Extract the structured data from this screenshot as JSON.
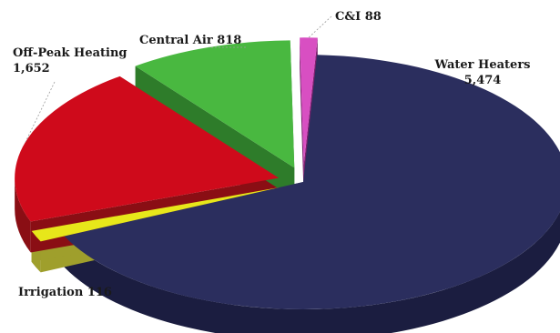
{
  "chart_data": {
    "type": "pie",
    "style": "3d-exploded",
    "title": "",
    "unit": "",
    "slices": [
      {
        "key": "water_heaters",
        "name": "Water Heaters",
        "value": 5474,
        "value_label": "5,474",
        "color": "#2b2e5e",
        "side_color": "#1b1d40"
      },
      {
        "key": "irrigation",
        "name": "Irrigation",
        "value": 116,
        "value_label": "116",
        "color": "#e7e71a",
        "side_color": "#9f9f2c"
      },
      {
        "key": "off_peak_heating",
        "name": "Off-Peak Heating",
        "value": 1652,
        "value_label": "1,652",
        "color": "#cf0a1b",
        "side_color": "#8a0e14"
      },
      {
        "key": "central_air",
        "name": "Central Air",
        "value": 818,
        "value_label": "818",
        "color": "#49b840",
        "side_color": "#2e7c2a"
      },
      {
        "key": "ci",
        "name": "C&I",
        "value": 88,
        "value_label": "88",
        "color": "#d84fc2",
        "side_color": "#7b1f6e"
      }
    ]
  }
}
